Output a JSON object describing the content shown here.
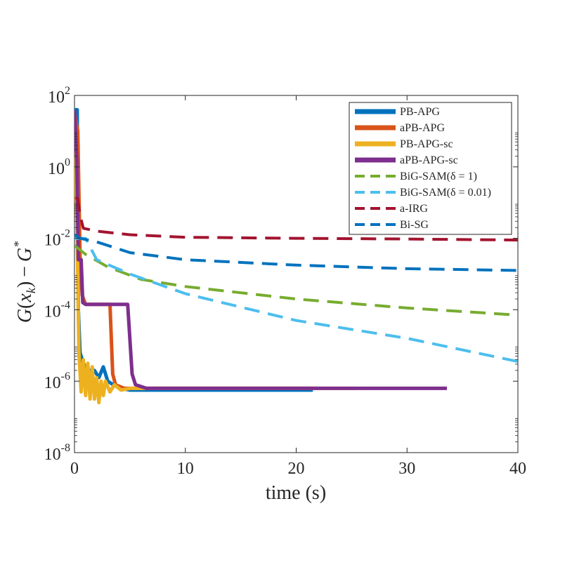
{
  "chart_data": {
    "type": "line",
    "title": "",
    "xlabel": "time (s)",
    "ylabel": "G(x_k) − G*",
    "xlim": [
      0,
      40
    ],
    "ylim_log10": [
      -8,
      2
    ],
    "yscale": "log",
    "x_ticks": [
      {
        "value": 0,
        "label": "0"
      },
      {
        "value": 10,
        "label": "10"
      },
      {
        "value": 20,
        "label": "20"
      },
      {
        "value": 30,
        "label": "30"
      },
      {
        "value": 40,
        "label": "40"
      }
    ],
    "y_ticks": [
      {
        "exponent": -8,
        "base": "10",
        "exp": "-8"
      },
      {
        "exponent": -6,
        "base": "10",
        "exp": "-6"
      },
      {
        "exponent": -4,
        "base": "10",
        "exp": "-4"
      },
      {
        "exponent": -2,
        "base": "10",
        "exp": "-2"
      },
      {
        "exponent": 0,
        "base": "10",
        "exp": "0"
      },
      {
        "exponent": 2,
        "base": "10",
        "exp": "2"
      }
    ],
    "legend_position": "top-right",
    "series": [
      {
        "name": "PB-APG",
        "color": "#0072BD",
        "style": "solid",
        "points": [
          [
            0,
            1.6
          ],
          [
            0.25,
            1.6
          ],
          [
            0.35,
            -4
          ],
          [
            0.5,
            -5.2
          ],
          [
            0.8,
            -5.5
          ],
          [
            1.2,
            -5.7
          ],
          [
            1.8,
            -5.7
          ],
          [
            2.2,
            -5.9
          ],
          [
            2.6,
            -5.6
          ],
          [
            3,
            -6.0
          ],
          [
            3.5,
            -6.1
          ],
          [
            4.2,
            -6.2
          ],
          [
            5,
            -6.25
          ],
          [
            6,
            -6.25
          ],
          [
            10,
            -6.25
          ],
          [
            21.5,
            -6.25
          ]
        ]
      },
      {
        "name": "aPB-APG",
        "color": "#D95319",
        "style": "solid",
        "points": [
          [
            0,
            1.5
          ],
          [
            0.3,
            1.0
          ],
          [
            0.5,
            -2.5
          ],
          [
            0.7,
            -3.6
          ],
          [
            1.0,
            -3.85
          ],
          [
            3.2,
            -3.85
          ],
          [
            3.45,
            -5.8
          ],
          [
            3.7,
            -6.1
          ],
          [
            4.5,
            -6.2
          ],
          [
            6,
            -6.2
          ],
          [
            10,
            -6.2
          ],
          [
            21.8,
            -6.2
          ]
        ]
      },
      {
        "name": "PB-APG-sc",
        "color": "#EDB120",
        "style": "solid",
        "points": [
          [
            0,
            1.6
          ],
          [
            0.25,
            -2
          ],
          [
            0.4,
            -5.2
          ],
          [
            0.6,
            -6.3
          ],
          [
            0.8,
            -5.4
          ],
          [
            1.0,
            -6.4
          ],
          [
            1.2,
            -5.5
          ],
          [
            1.4,
            -6.5
          ],
          [
            1.6,
            -5.6
          ],
          [
            1.8,
            -6.5
          ],
          [
            2.0,
            -5.9
          ],
          [
            2.2,
            -6.6
          ],
          [
            2.4,
            -6.0
          ],
          [
            2.6,
            -6.4
          ],
          [
            2.8,
            -6.0
          ],
          [
            3.2,
            -6.3
          ],
          [
            3.6,
            -6.1
          ],
          [
            4.2,
            -6.25
          ],
          [
            5,
            -6.2
          ],
          [
            6,
            -6.2
          ],
          [
            10,
            -6.2
          ],
          [
            25.3,
            -6.2
          ]
        ]
      },
      {
        "name": "aPB-APG-sc",
        "color": "#7E2F8E",
        "style": "solid",
        "points": [
          [
            0,
            1.6
          ],
          [
            0.2,
            0.2
          ],
          [
            0.35,
            -2.6
          ],
          [
            0.6,
            -2.6
          ],
          [
            0.75,
            -3.8
          ],
          [
            1.0,
            -3.85
          ],
          [
            4.8,
            -3.85
          ],
          [
            5.2,
            -5.8
          ],
          [
            5.5,
            -6.1
          ],
          [
            6.5,
            -6.2
          ],
          [
            10,
            -6.2
          ],
          [
            33.6,
            -6.2
          ]
        ]
      },
      {
        "name": "BiG-SAM(δ = 1)",
        "color": "#77AC30",
        "style": "dashed",
        "points": [
          [
            0,
            -2.2
          ],
          [
            1,
            -2.45
          ],
          [
            3,
            -2.8
          ],
          [
            6,
            -3.15
          ],
          [
            10,
            -3.35
          ],
          [
            20,
            -3.7
          ],
          [
            30,
            -3.95
          ],
          [
            40,
            -4.15
          ]
        ]
      },
      {
        "name": "BiG-SAM(δ = 0.01)",
        "color": "#4DBEEE",
        "style": "dashed",
        "points": [
          [
            0,
            -2.0
          ],
          [
            1,
            -2.0
          ],
          [
            2,
            -2.6
          ],
          [
            5,
            -3.0
          ],
          [
            10,
            -3.55
          ],
          [
            20,
            -4.3
          ],
          [
            30,
            -4.8
          ],
          [
            40,
            -5.45
          ]
        ]
      },
      {
        "name": "a-IRG",
        "color": "#A2142F",
        "style": "dashed",
        "points": [
          [
            0.1,
            -0.85
          ],
          [
            0.3,
            -0.9
          ],
          [
            0.5,
            -1.35
          ],
          [
            0.8,
            -1.72
          ],
          [
            2,
            -1.8
          ],
          [
            5,
            -1.9
          ],
          [
            10,
            -1.97
          ],
          [
            20,
            -2.0
          ],
          [
            30,
            -2.02
          ],
          [
            40,
            -2.05
          ]
        ]
      },
      {
        "name": "Bi-SG",
        "color": "#0072BD",
        "style": "dashed",
        "points": [
          [
            0,
            -1.9
          ],
          [
            0.5,
            -2.0
          ],
          [
            2,
            -2.1
          ],
          [
            5,
            -2.4
          ],
          [
            10,
            -2.6
          ],
          [
            20,
            -2.75
          ],
          [
            30,
            -2.85
          ],
          [
            40,
            -2.9
          ]
        ]
      }
    ]
  },
  "axis_labels": {
    "xlabel": "time (s)",
    "ylabel_G": "G",
    "ylabel_open": "(",
    "ylabel_x": "x",
    "ylabel_sub": "k",
    "ylabel_close": ")",
    "ylabel_minus": "−",
    "ylabel_G2": "G",
    "ylabel_sup": "*"
  }
}
